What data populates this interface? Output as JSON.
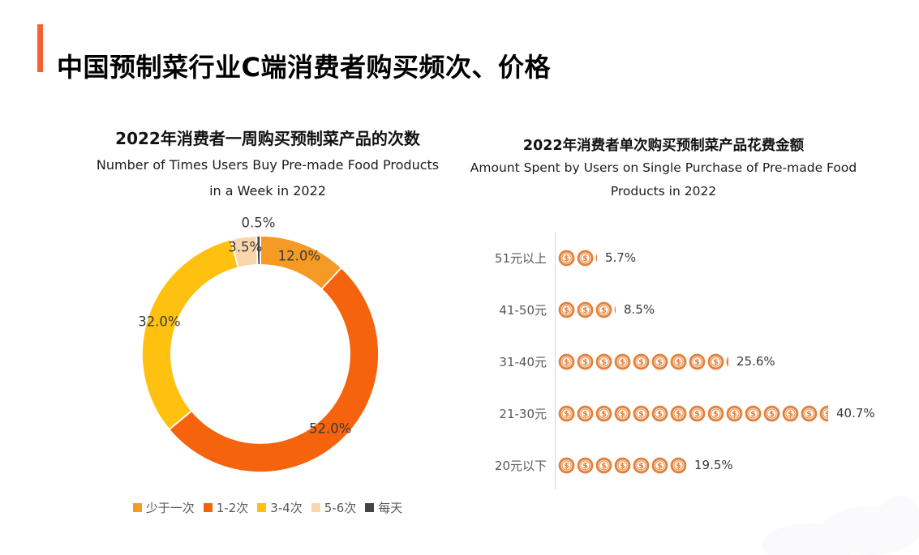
{
  "header": {
    "title": "中国预制菜行业C端消费者购买频次、价格",
    "accent_color": "#F4622D"
  },
  "chart_data": [
    {
      "type": "pie",
      "subtype": "donut",
      "title_zh": "2022年消费者一周购买预制菜产品的次数",
      "title_en": [
        "Number of Times Users Buy Pre-made Food Products",
        "in a Week in 2022"
      ],
      "legend_position": "bottom",
      "segments": [
        {
          "label": "少于一次",
          "value": 12.0,
          "display": "12.0%",
          "color": "#F59B25",
          "label_r": 130
        },
        {
          "label": "1-2次",
          "value": 52.0,
          "display": "52.0%",
          "color": "#F5640D",
          "label_r": 126
        },
        {
          "label": "3-4次",
          "value": 32.0,
          "display": "32.0%",
          "color": "#FEC110",
          "label_r": 131
        },
        {
          "label": "5-6次",
          "value": 3.5,
          "display": "3.5%",
          "color": "#F9D6AE",
          "label_r": 133
        },
        {
          "label": "每天",
          "value": 0.5,
          "display": "0.5%",
          "color": "#454545",
          "label_r": 162
        }
      ]
    },
    {
      "type": "bar",
      "subtype": "pictogram",
      "title_zh": "2022年消费者单次购买预制菜产品花费金额",
      "title_en": [
        "Amount Spent by Users on Single Purchase of Pre-made Food",
        "Products in 2022"
      ],
      "icon": "dollar-coin-icon",
      "icon_color": "#E3823C",
      "percent_per_icon": 2.8,
      "rows": [
        {
          "label": "51元以上",
          "value": 5.7,
          "display": "5.7%"
        },
        {
          "label": "41-50元",
          "value": 8.5,
          "display": "8.5%"
        },
        {
          "label": "31-40元",
          "value": 25.6,
          "display": "25.6%"
        },
        {
          "label": "21-30元",
          "value": 40.7,
          "display": "40.7%"
        },
        {
          "label": "20元以下",
          "value": 19.5,
          "display": "19.5%"
        }
      ]
    }
  ]
}
